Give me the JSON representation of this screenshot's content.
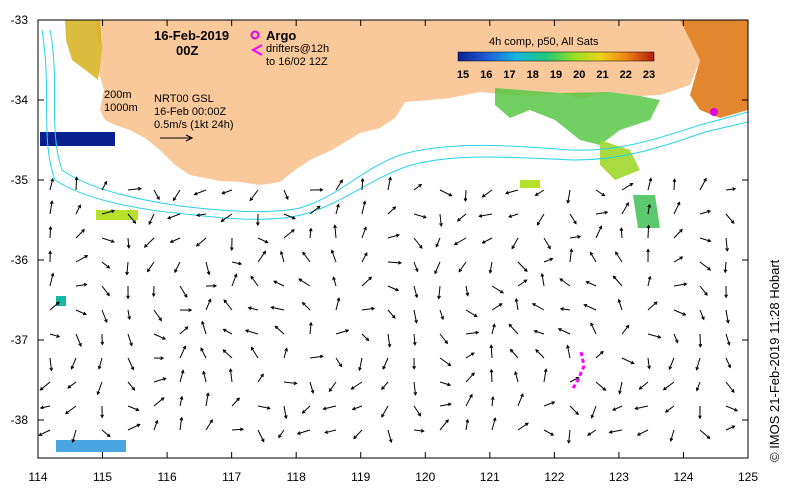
{
  "date_label": "16-Feb-2019",
  "time_label": "00Z",
  "argo_label": "Argo",
  "drifters_label": "drifters@12h",
  "drifters_to_label": "to 16/02 12Z",
  "depth_label_1": "200m",
  "depth_label_2": "1000m",
  "product_label": "NRT00 GSL",
  "product_time": "16-Feb 00:00Z",
  "scale_label": "0.5m/s (1kt 24h)",
  "sst_title": "4h comp, p50, All Sats",
  "sst_ticks": [
    "15",
    "16",
    "17",
    "18",
    "19",
    "20",
    "21",
    "22",
    "23"
  ],
  "x_ticks": [
    "114",
    "115",
    "116",
    "117",
    "118",
    "119",
    "120",
    "121",
    "122",
    "123",
    "124",
    "125"
  ],
  "y_ticks": [
    "-33",
    "-34",
    "-35",
    "-36",
    "-37",
    "-38"
  ],
  "credit": "© IMOS 21-Feb-2019 11:28 Hobart",
  "colors": {
    "land": "#f9c89b",
    "coast_contour": "#27d3e8",
    "argo": "#e000e0",
    "drifter": "#ff00ff",
    "vector": "#000000"
  }
}
